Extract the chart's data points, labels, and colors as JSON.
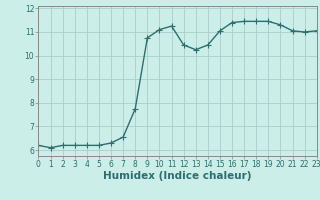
{
  "x": [
    0,
    1,
    2,
    3,
    4,
    5,
    6,
    7,
    8,
    9,
    10,
    11,
    12,
    13,
    14,
    15,
    16,
    17,
    18,
    19,
    20,
    21,
    22,
    23
  ],
  "y": [
    6.2,
    6.1,
    6.2,
    6.2,
    6.2,
    6.2,
    6.3,
    6.55,
    7.75,
    10.75,
    11.1,
    11.25,
    10.45,
    10.25,
    10.45,
    11.05,
    11.4,
    11.45,
    11.45,
    11.45,
    11.3,
    11.05,
    11.0,
    11.05
  ],
  "line_color": "#2d6e6e",
  "marker": "+",
  "marker_size": 4,
  "marker_linewidth": 0.8,
  "bg_color": "#cceee8",
  "grid_color": "#aacccc",
  "xlabel": "Humidex (Indice chaleur)",
  "xlabel_fontsize": 7.5,
  "xlabel_color": "#2d6e6e",
  "xlim": [
    0,
    23
  ],
  "ylim": [
    5.75,
    12.1
  ],
  "yticks": [
    6,
    7,
    8,
    9,
    10,
    11,
    12
  ],
  "xticks": [
    0,
    1,
    2,
    3,
    4,
    5,
    6,
    7,
    8,
    9,
    10,
    11,
    12,
    13,
    14,
    15,
    16,
    17,
    18,
    19,
    20,
    21,
    22,
    23
  ],
  "tick_fontsize": 5.5,
  "linewidth": 1.0,
  "spine_color": "#888888"
}
